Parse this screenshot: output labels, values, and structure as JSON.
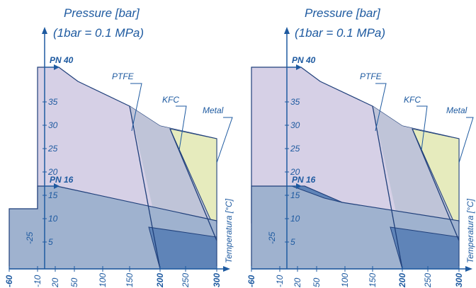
{
  "chart_data": [
    {
      "type": "area",
      "ylabel": "Pressure [bar]",
      "ylabel_note": "(1bar = 0.1 MPa)",
      "xlabel": "Temperatura [°C]",
      "x_ticks": [
        "-60",
        "-10",
        "20",
        "50",
        "100",
        "150",
        "200",
        "250",
        "300"
      ],
      "y_ticks": [
        "5",
        "10",
        "15",
        "20",
        "25",
        "30",
        "35"
      ],
      "y_neg_label": "-25",
      "pn_labels": [
        "PN 40",
        "PN 16"
      ],
      "series": [
        {
          "name": "PTFE",
          "x": [
            -60,
            -10,
            -10,
            20,
            160,
            200
          ],
          "y": [
            0,
            0,
            40,
            40,
            25,
            0
          ]
        },
        {
          "name": "KFC",
          "x": [
            -10,
            150,
            200,
            250,
            300
          ],
          "y": [
            40,
            32,
            28,
            24,
            9
          ]
        },
        {
          "name": "Metal",
          "x": [
            -10,
            150,
            200,
            300,
            300
          ],
          "y": [
            40,
            32,
            28,
            26,
            6
          ]
        },
        {
          "name": "PN 16",
          "x": [
            -60,
            -10,
            20,
            300
          ],
          "y": [
            16,
            16,
            16,
            9
          ]
        }
      ]
    },
    {
      "type": "area",
      "ylabel": "Pressure [bar]",
      "ylabel_note": "(1bar = 0.1 MPa)",
      "xlabel": "Temperatura [°C]",
      "x_ticks": [
        "-60",
        "-10",
        "20",
        "50",
        "100",
        "150",
        "200",
        "250",
        "300"
      ],
      "y_ticks": [
        "5",
        "10",
        "15",
        "20",
        "25",
        "30",
        "35"
      ],
      "y_neg_label": "-25",
      "pn_labels": [
        "PN 40",
        "PN 16"
      ],
      "series": [
        {
          "name": "PTFE",
          "x": [
            -60,
            -10,
            -10,
            20,
            160,
            200
          ],
          "y": [
            0,
            0,
            40,
            40,
            25,
            0
          ]
        },
        {
          "name": "KFC",
          "x": [
            -10,
            150,
            200,
            250,
            300
          ],
          "y": [
            40,
            32,
            28,
            24,
            9
          ]
        },
        {
          "name": "Metal",
          "x": [
            -10,
            150,
            200,
            300,
            300
          ],
          "y": [
            40,
            32,
            28,
            26,
            6
          ]
        },
        {
          "name": "PN 16",
          "x": [
            -60,
            -10,
            20,
            300
          ],
          "y": [
            16,
            16,
            16,
            9
          ]
        }
      ]
    }
  ],
  "colors": {
    "axis": "#1e5aa0",
    "ptfe_fill": "#d6d0e6",
    "lower_fill": "#9fb2cf",
    "dark_fill": "#5f84b8",
    "metal_fill": "#e6ebbd",
    "kfc_fill": "#bfc4d8",
    "outline": "#1f3f7a"
  }
}
